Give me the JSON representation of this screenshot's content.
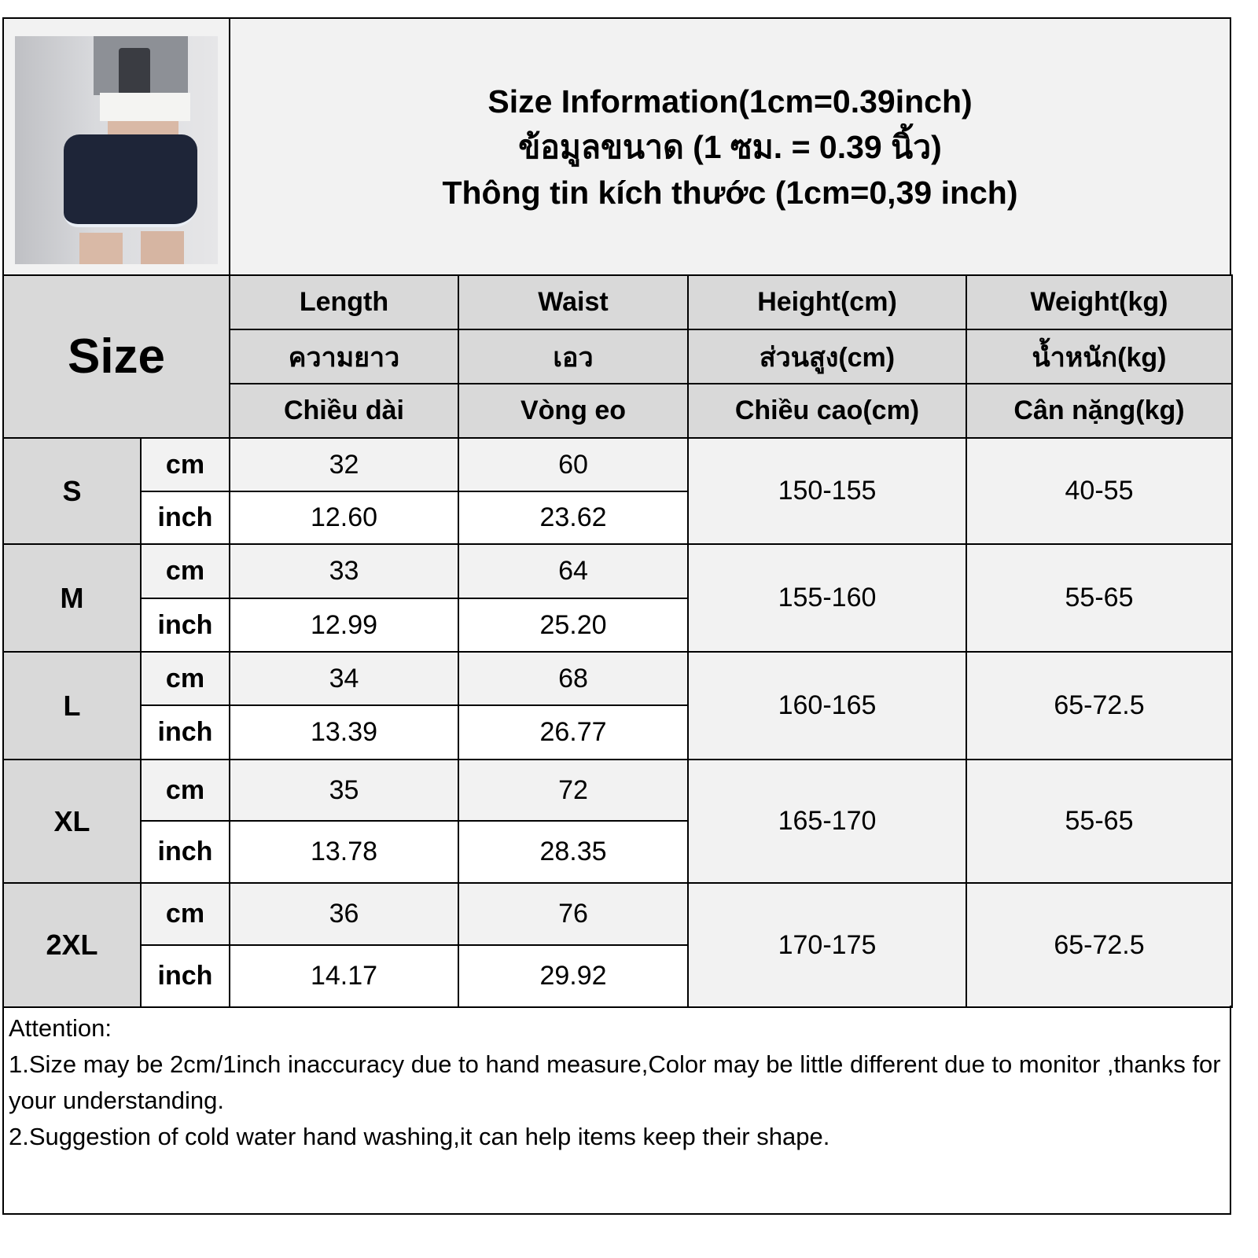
{
  "title": {
    "lines": [
      "Size Information(1cm=0.39inch)",
      "ข้อมูลขนาด (1 ซม. = 0.39 นิ้ว)",
      "Thông tin kích thước (1cm=0,39 inch)"
    ]
  },
  "table": {
    "size_label": "Size",
    "headers": [
      [
        "Length",
        "ความยาว",
        "Chiều dài"
      ],
      [
        "Waist",
        "เอว",
        "Vòng eo"
      ],
      [
        "Height(cm)",
        "ส่วนสูง(cm)",
        "Chiều cao(cm)"
      ],
      [
        "Weight(kg)",
        "น้ำหนัก(kg)",
        "Cân nặng(kg)"
      ]
    ],
    "unit_cm": "cm",
    "unit_inch": "inch",
    "rows": [
      {
        "size": "S",
        "length_cm": "32",
        "waist_cm": "60",
        "length_inch": "12.60",
        "waist_inch": "23.62",
        "height": "150-155",
        "weight": "40-55"
      },
      {
        "size": "M",
        "length_cm": "33",
        "waist_cm": "64",
        "length_inch": "12.99",
        "waist_inch": "25.20",
        "height": "155-160",
        "weight": "55-65"
      },
      {
        "size": "L",
        "length_cm": "34",
        "waist_cm": "68",
        "length_inch": "13.39",
        "waist_inch": "26.77",
        "height": "160-165",
        "weight": "65-72.5"
      },
      {
        "size": "XL",
        "length_cm": "35",
        "waist_cm": "72",
        "length_inch": "13.78",
        "waist_inch": "28.35",
        "height": "165-170",
        "weight": "55-65"
      },
      {
        "size": "2XL",
        "length_cm": "36",
        "waist_cm": "76",
        "length_inch": "14.17",
        "waist_inch": "29.92",
        "height": "170-175",
        "weight": "65-72.5"
      }
    ]
  },
  "notes": {
    "heading": "Attention:",
    "items": [
      "1.Size may be 2cm/1inch inaccuracy due to hand measure,Color may be little different due to monitor ,thanks for your understanding.",
      "2.Suggestion of cold water hand washing,it can help items keep their shape."
    ]
  },
  "colors": {
    "header_bg": "#d9d9d9",
    "cell_bg": "#f2f2f2",
    "shorts": "#1e2538"
  }
}
